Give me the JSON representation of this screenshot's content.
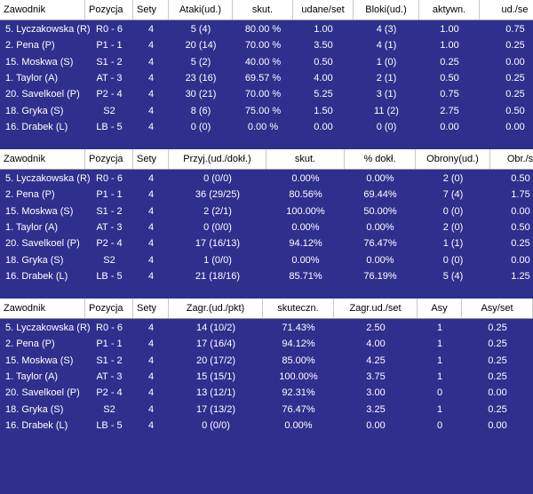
{
  "tables": [
    {
      "columns": [
        "Zawodnik",
        "Pozycja",
        "Sety",
        "Ataki(ud.)",
        "skut.",
        "udane/set",
        "Bloki(ud.)",
        "aktywn.",
        "ud./se"
      ],
      "rows": [
        [
          "5. Lyczakowska (R)",
          "R0 - 6",
          "4",
          "5 (4)",
          "80.00 %",
          "1.00",
          "4 (3)",
          "1.00",
          "0.75"
        ],
        [
          "2. Pena (P)",
          "P1 - 1",
          "4",
          "20 (14)",
          "70.00 %",
          "3.50",
          "4 (1)",
          "1.00",
          "0.25"
        ],
        [
          "15. Moskwa (S)",
          "S1 - 2",
          "4",
          "5 (2)",
          "40.00 %",
          "0.50",
          "1 (0)",
          "0.25",
          "0.00"
        ],
        [
          "1. Taylor (A)",
          "AT - 3",
          "4",
          "23 (16)",
          "69.57 %",
          "4.00",
          "2 (1)",
          "0.50",
          "0.25"
        ],
        [
          "20. Savelkoel (P)",
          "P2 - 4",
          "4",
          "30 (21)",
          "70.00 %",
          "5.25",
          "3 (1)",
          "0.75",
          "0.25"
        ],
        [
          "18. Gryka (S)",
          "S2",
          "4",
          "8 (6)",
          "75.00 %",
          "1.50",
          "11 (2)",
          "2.75",
          "0.50"
        ],
        [
          "16. Drabek (L)",
          "LB - 5",
          "4",
          "0 (0)",
          "0.00 %",
          "0.00",
          "0 (0)",
          "0.00",
          "0.00"
        ]
      ]
    },
    {
      "columns": [
        "Zawodnik",
        "Pozycja",
        "Sety",
        "Przyj.(ud./dokł.)",
        "skut.",
        "% dokł.",
        "Obrony(ud.)",
        "Obr./s"
      ],
      "rows": [
        [
          "5. Lyczakowska (R)",
          "R0 - 6",
          "4",
          "0 (0/0)",
          "0.00%",
          "0.00%",
          "2 (0)",
          "0.50"
        ],
        [
          "2. Pena (P)",
          "P1 - 1",
          "4",
          "36 (29/25)",
          "80.56%",
          "69.44%",
          "7 (4)",
          "1.75"
        ],
        [
          "15. Moskwa (S)",
          "S1 - 2",
          "4",
          "2 (2/1)",
          "100.00%",
          "50.00%",
          "0 (0)",
          "0.00"
        ],
        [
          "1. Taylor (A)",
          "AT - 3",
          "4",
          "0 (0/0)",
          "0.00%",
          "0.00%",
          "2 (0)",
          "0.50"
        ],
        [
          "20. Savelkoel (P)",
          "P2 - 4",
          "4",
          "17 (16/13)",
          "94.12%",
          "76.47%",
          "1 (1)",
          "0.25"
        ],
        [
          "18. Gryka (S)",
          "S2",
          "4",
          "1 (0/0)",
          "0.00%",
          "0.00%",
          "0 (0)",
          "0.00"
        ],
        [
          "16. Drabek (L)",
          "LB - 5",
          "4",
          "21 (18/16)",
          "85.71%",
          "76.19%",
          "5 (4)",
          "1.25"
        ]
      ]
    },
    {
      "columns": [
        "Zawodnik",
        "Pozycja",
        "Sety",
        "Zagr.(ud./pkt)",
        "skuteczn.",
        "Zagr.ud./set",
        "Asy",
        "Asy/set"
      ],
      "rows": [
        [
          "5. Lyczakowska (R)",
          "R0 - 6",
          "4",
          "14 (10/2)",
          "71.43%",
          "2.50",
          "1",
          "0.25"
        ],
        [
          "2. Pena (P)",
          "P1 - 1",
          "4",
          "17 (16/4)",
          "94.12%",
          "4.00",
          "1",
          "0.25"
        ],
        [
          "15. Moskwa (S)",
          "S1 - 2",
          "4",
          "20 (17/2)",
          "85.00%",
          "4.25",
          "1",
          "0.25"
        ],
        [
          "1. Taylor (A)",
          "AT - 3",
          "4",
          "15 (15/1)",
          "100.00%",
          "3.75",
          "1",
          "0.25"
        ],
        [
          "20. Savelkoel (P)",
          "P2 - 4",
          "4",
          "13 (12/1)",
          "92.31%",
          "3.00",
          "0",
          "0.00"
        ],
        [
          "18. Gryka (S)",
          "S2",
          "4",
          "17 (13/2)",
          "76.47%",
          "3.25",
          "1",
          "0.25"
        ],
        [
          "16. Drabek (L)",
          "LB - 5",
          "4",
          "0 (0/0)",
          "0.00%",
          "0.00",
          "0",
          "0.00"
        ]
      ]
    }
  ]
}
